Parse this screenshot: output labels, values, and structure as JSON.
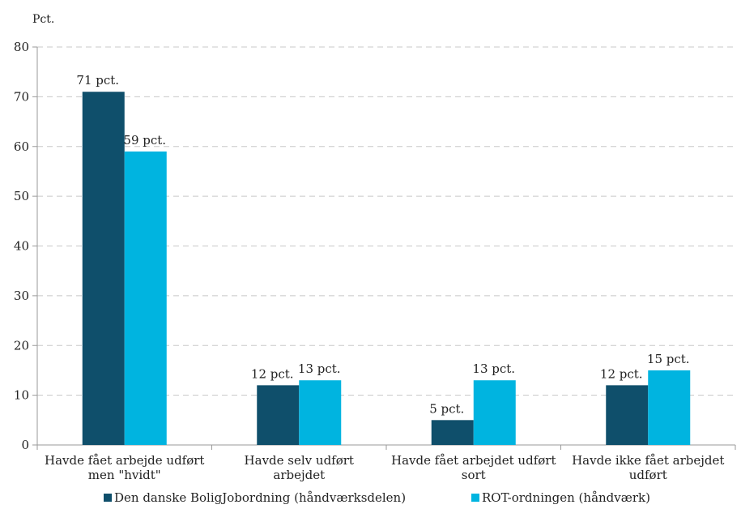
{
  "chart_data": {
    "type": "bar",
    "ylabel": "Pct.",
    "ylim": [
      0,
      80
    ],
    "yticks": [
      0,
      10,
      20,
      30,
      40,
      50,
      60,
      70,
      80
    ],
    "grid": true,
    "legend_position": "bottom",
    "categories": [
      [
        "Havde fået arbejde udført",
        "men \"hvidt\""
      ],
      [
        "Havde selv udført",
        "arbejdet"
      ],
      [
        "Havde fået arbejdet udført",
        "sort"
      ],
      [
        "Havde ikke fået arbejdet",
        "udført"
      ]
    ],
    "series": [
      {
        "name": "Den danske BoligJobordning (håndværksdelen)",
        "color": "#0f4f6b",
        "values": [
          71,
          12,
          5,
          12
        ],
        "labels": [
          "71 pct.",
          "12 pct.",
          "5 pct.",
          "12 pct."
        ]
      },
      {
        "name": "ROT-ordningen (håndværk)",
        "color": "#00b4e0",
        "values": [
          59,
          13,
          13,
          15
        ],
        "labels": [
          "59 pct.",
          "13 pct.",
          "13 pct.",
          "15 pct."
        ]
      }
    ]
  }
}
